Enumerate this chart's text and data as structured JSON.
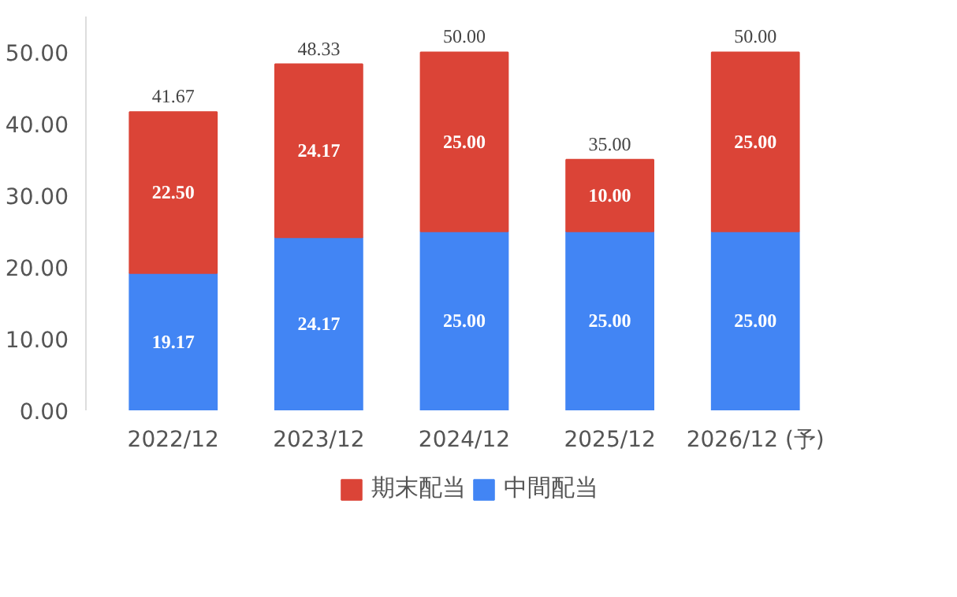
{
  "chart_data": {
    "type": "bar",
    "stacked": true,
    "categories": [
      "2022/12",
      "2023/12",
      "2024/12",
      "2025/12",
      "2026/12 (予)"
    ],
    "series": [
      {
        "name": "中間配当",
        "color": "#4285f4",
        "values": [
          19.17,
          24.17,
          25,
          25,
          25
        ],
        "value_labels": [
          "19.17",
          "24.17",
          "25.00",
          "25.00",
          "25.00"
        ]
      },
      {
        "name": "期末配当",
        "color": "#db4437",
        "values": [
          22.5,
          24.17,
          25,
          10,
          25
        ],
        "value_labels": [
          "22.50",
          "24.17",
          "25.00",
          "10.00",
          "25.00"
        ]
      }
    ],
    "totals": [
      "41.67",
      "48.33",
      "50.00",
      "35.00",
      "50.00"
    ],
    "ylim": [
      0,
      55
    ],
    "yticks": [
      {
        "value": 0,
        "label": "0.00"
      },
      {
        "value": 10,
        "label": "10.00"
      },
      {
        "value": 20,
        "label": "20.00"
      },
      {
        "value": 30,
        "label": "30.00"
      },
      {
        "value": 40,
        "label": "40.00"
      },
      {
        "value": 50,
        "label": "50.00"
      }
    ],
    "grid": false,
    "legend": "bottom"
  }
}
